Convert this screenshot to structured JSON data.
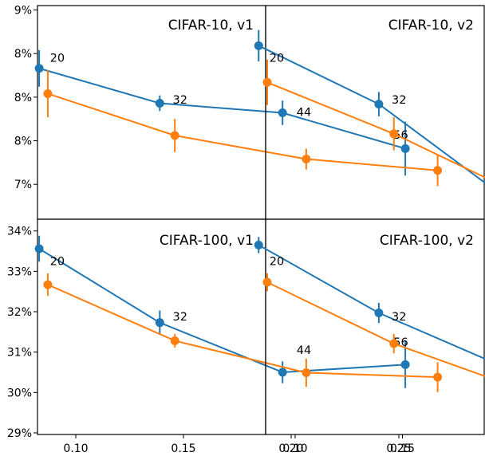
{
  "chart_data": [
    {
      "type": "line",
      "title": "CIFAR-10, v1",
      "xlim": [
        0.07,
        0.275
      ],
      "ylim": [
        0.066,
        0.0905
      ],
      "yticks": [
        {
          "value": 0.07,
          "label": "7%"
        },
        {
          "value": 0.075,
          "label": "8%"
        },
        {
          "value": 0.08,
          "label": "8%"
        },
        {
          "value": 0.085,
          "label": "8%"
        },
        {
          "value": 0.09,
          "label": "9%"
        }
      ],
      "xticks": [],
      "annotations": [
        {
          "text": "20",
          "x": 0.088,
          "y": 0.0845
        },
        {
          "text": "32",
          "x": 0.145,
          "y": 0.0797
        },
        {
          "text": "44",
          "x": 0.2025,
          "y": 0.0783
        },
        {
          "text": "56",
          "x": 0.2475,
          "y": 0.0757
        }
      ],
      "series": [
        {
          "color": "#1f77b4",
          "x": [
            0.083,
            0.139,
            0.196,
            0.253
          ],
          "y": [
            0.0833,
            0.0793,
            0.0782,
            0.0741
          ],
          "err": [
            0.0021,
            0.0009,
            0.0014,
            0.0031
          ]
        },
        {
          "color": "#ff7f0e",
          "x": [
            0.087,
            0.146,
            0.207,
            0.268
          ],
          "y": [
            0.0804,
            0.0756,
            0.0729,
            0.0716
          ],
          "err": [
            0.0027,
            0.0019,
            0.0012,
            0.0018
          ]
        }
      ]
    },
    {
      "type": "line",
      "title": "CIFAR-10, v2",
      "xlim": [
        0.07,
        0.275
      ],
      "ylim": [
        0.066,
        0.0905
      ],
      "yticks": [],
      "xticks": [],
      "annotations": [
        {
          "text": "20",
          "x": 0.088,
          "y": 0.0845
        },
        {
          "text": "32",
          "x": 0.145,
          "y": 0.0797
        },
        {
          "text": "44",
          "x": 0.2025,
          "y": 0.0712
        },
        {
          "text": "56",
          "x": 0.2475,
          "y": 0.0696
        }
      ],
      "series": [
        {
          "color": "#1f77b4",
          "x": [
            0.083,
            0.139,
            0.196,
            0.253
          ],
          "y": [
            0.0859,
            0.0792,
            0.0688,
            0.0675
          ],
          "err": [
            0.0018,
            0.0014,
            0.0017,
            0.0013
          ]
        },
        {
          "color": "#ff7f0e",
          "x": [
            0.087,
            0.146,
            0.207,
            0.268
          ],
          "y": [
            0.0817,
            0.0758,
            0.0686,
            0.0665
          ],
          "err": [
            0.0026,
            0.0019,
            0.0012,
            0.0017
          ]
        }
      ]
    },
    {
      "type": "line",
      "title": "CIFAR-100, v1",
      "xlim": [
        0.07,
        0.275
      ],
      "ylim": [
        0.2896,
        0.3429
      ],
      "yticks": [
        {
          "value": 0.29,
          "label": "29%"
        },
        {
          "value": 0.3,
          "label": "30%"
        },
        {
          "value": 0.31,
          "label": "31%"
        },
        {
          "value": 0.32,
          "label": "32%"
        },
        {
          "value": 0.33,
          "label": "33%"
        },
        {
          "value": 0.34,
          "label": "34%"
        }
      ],
      "xticks": [
        {
          "value": 0.1,
          "label": "0.10"
        },
        {
          "value": 0.15,
          "label": "0.15"
        },
        {
          "value": 0.2,
          "label": "0.20"
        },
        {
          "value": 0.25,
          "label": "0.25"
        }
      ],
      "annotations": [
        {
          "text": "20",
          "x": 0.088,
          "y": 0.3325
        },
        {
          "text": "32",
          "x": 0.145,
          "y": 0.3188
        },
        {
          "text": "44",
          "x": 0.2025,
          "y": 0.3105
        },
        {
          "text": "56",
          "x": 0.2475,
          "y": 0.3125
        }
      ],
      "series": [
        {
          "color": "#1f77b4",
          "x": [
            0.083,
            0.139,
            0.196,
            0.253
          ],
          "y": [
            0.3356,
            0.3173,
            0.305,
            0.3069
          ],
          "err": [
            0.0032,
            0.003,
            0.0027,
            0.0058
          ]
        },
        {
          "color": "#ff7f0e",
          "x": [
            0.087,
            0.146,
            0.207,
            0.268
          ],
          "y": [
            0.3267,
            0.3128,
            0.3049,
            0.3038
          ],
          "err": [
            0.0028,
            0.0017,
            0.0035,
            0.0037
          ]
        }
      ]
    },
    {
      "type": "line",
      "title": "CIFAR-100, v2",
      "xlim": [
        0.07,
        0.275
      ],
      "ylim": [
        0.2896,
        0.3429
      ],
      "yticks": [],
      "xticks": [
        {
          "value": 0.1,
          "label": "0.10"
        },
        {
          "value": 0.15,
          "label": "0.15"
        },
        {
          "value": 0.2,
          "label": "0.20"
        },
        {
          "value": 0.25,
          "label": "0.25"
        }
      ],
      "annotations": [
        {
          "text": "20",
          "x": 0.088,
          "y": 0.3325
        },
        {
          "text": "32",
          "x": 0.145,
          "y": 0.3188
        },
        {
          "text": "44",
          "x": 0.2025,
          "y": 0.3103
        },
        {
          "text": "56",
          "x": 0.2475,
          "y": 0.306
        }
      ],
      "series": [
        {
          "color": "#1f77b4",
          "x": [
            0.083,
            0.139,
            0.196,
            0.253
          ],
          "y": [
            0.3365,
            0.3197,
            0.3066,
            0.3018
          ],
          "err": [
            0.002,
            0.0025,
            0.0015,
            0.0036
          ]
        },
        {
          "color": "#ff7f0e",
          "x": [
            0.087,
            0.146,
            0.207,
            0.268
          ],
          "y": [
            0.3273,
            0.3121,
            0.3005,
            0.2948
          ],
          "err": [
            0.0022,
            0.0024,
            0.004,
            0.0028
          ]
        }
      ]
    }
  ]
}
